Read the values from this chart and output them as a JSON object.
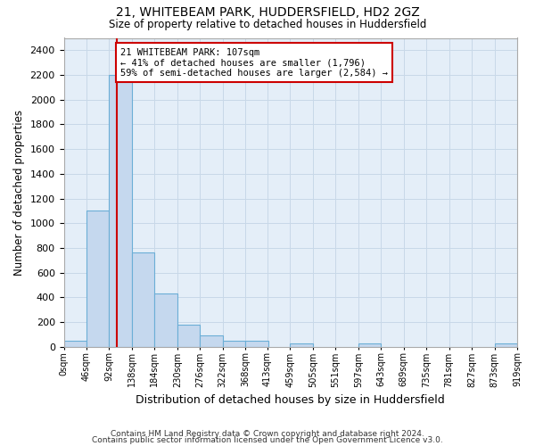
{
  "title1": "21, WHITEBEAM PARK, HUDDERSFIELD, HD2 2GZ",
  "title2": "Size of property relative to detached houses in Huddersfield",
  "xlabel": "Distribution of detached houses by size in Huddersfield",
  "ylabel": "Number of detached properties",
  "footer1": "Contains HM Land Registry data © Crown copyright and database right 2024.",
  "footer2": "Contains public sector information licensed under the Open Government Licence v3.0.",
  "bin_edges": [
    0,
    46,
    92,
    138,
    184,
    230,
    276,
    322,
    368,
    413,
    459,
    505,
    551,
    597,
    643,
    689,
    735,
    781,
    827,
    873,
    919
  ],
  "bar_heights": [
    50,
    1100,
    2200,
    760,
    430,
    175,
    90,
    50,
    50,
    0,
    30,
    0,
    0,
    30,
    0,
    0,
    0,
    0,
    0,
    30
  ],
  "bar_color": "#c5d8ee",
  "bar_edge_color": "#6baed6",
  "property_size": 107,
  "annotation_line1": "21 WHITEBEAM PARK: 107sqm",
  "annotation_line2": "← 41% of detached houses are smaller (1,796)",
  "annotation_line3": "59% of semi-detached houses are larger (2,584) →",
  "annotation_box_color": "#cc0000",
  "ylim": [
    0,
    2500
  ],
  "yticks": [
    0,
    200,
    400,
    600,
    800,
    1000,
    1200,
    1400,
    1600,
    1800,
    2000,
    2200,
    2400
  ],
  "grid_color": "#c8d8e8",
  "bg_color": "#e4eef8"
}
